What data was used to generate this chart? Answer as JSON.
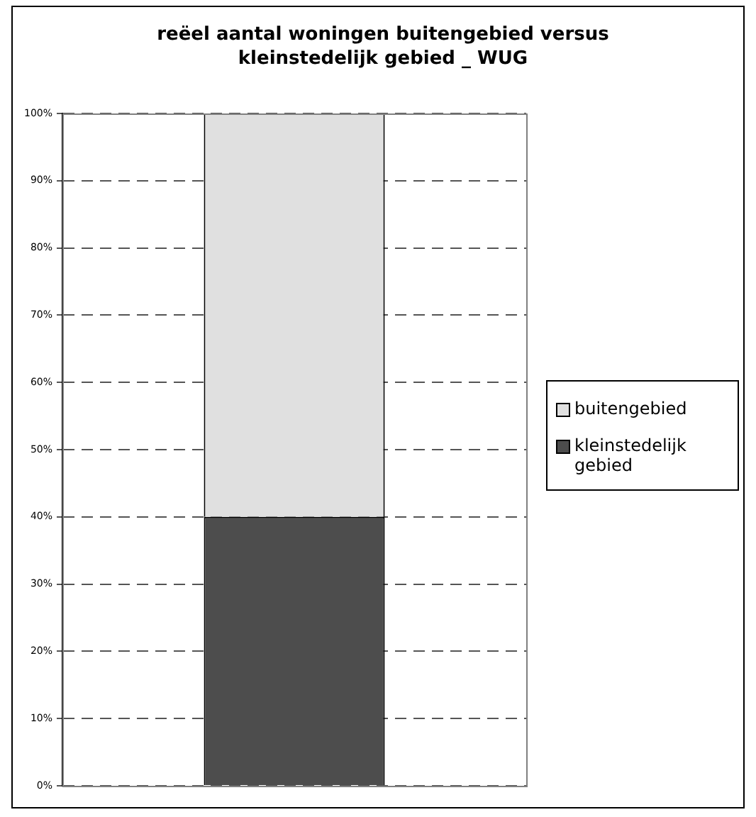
{
  "chart_data": {
    "type": "bar",
    "title": "reëel aantal woningen buitengebied versus kleinstedelijk gebied _ WUG",
    "categories": [
      null
    ],
    "stacked": true,
    "series": [
      {
        "name": "kleinstedelijk gebied",
        "color": "#4d4d4d",
        "values": [
          40
        ]
      },
      {
        "name": "buitengebied",
        "color": "#e0e0e0",
        "values": [
          60
        ]
      }
    ],
    "ylim": [
      0,
      100
    ],
    "yticks": [
      {
        "value": 0,
        "label": "0%"
      },
      {
        "value": 10,
        "label": "10%"
      },
      {
        "value": 20,
        "label": "20%"
      },
      {
        "value": 30,
        "label": "30%"
      },
      {
        "value": 40,
        "label": "40%"
      },
      {
        "value": 50,
        "label": "50%"
      },
      {
        "value": 60,
        "label": "60%"
      },
      {
        "value": 70,
        "label": "70%"
      },
      {
        "value": 80,
        "label": "80%"
      },
      {
        "value": 90,
        "label": "90%"
      },
      {
        "value": 100,
        "label": "100%"
      }
    ],
    "grid": "y",
    "legend": "right"
  }
}
